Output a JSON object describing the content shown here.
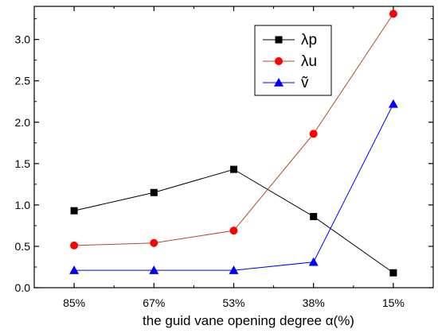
{
  "chart_data": {
    "type": "line",
    "title": "",
    "xlabel": "the guid vane opening degree  α(%)",
    "ylabel": "",
    "categories": [
      "85%",
      "67%",
      "53%",
      "38%",
      "15%"
    ],
    "ylim": [
      0,
      3.4
    ],
    "yticks": [
      "0.0",
      "0.5",
      "1.0",
      "1.5",
      "2.0",
      "2.5",
      "3.0"
    ],
    "grid": false,
    "legend_position": "top-right",
    "series": [
      {
        "name": "λp",
        "marker": "square",
        "color": "#000000",
        "values": [
          0.93,
          1.15,
          1.43,
          0.86,
          0.18
        ]
      },
      {
        "name": "λu",
        "marker": "circle",
        "color": "#ff0000",
        "line_color": "#b04a2a",
        "values": [
          0.51,
          0.54,
          0.69,
          1.86,
          3.31
        ]
      },
      {
        "name": "ṽ",
        "marker": "triangle",
        "color": "#0000ff",
        "values": [
          0.21,
          0.21,
          0.21,
          0.31,
          2.22
        ]
      }
    ]
  }
}
